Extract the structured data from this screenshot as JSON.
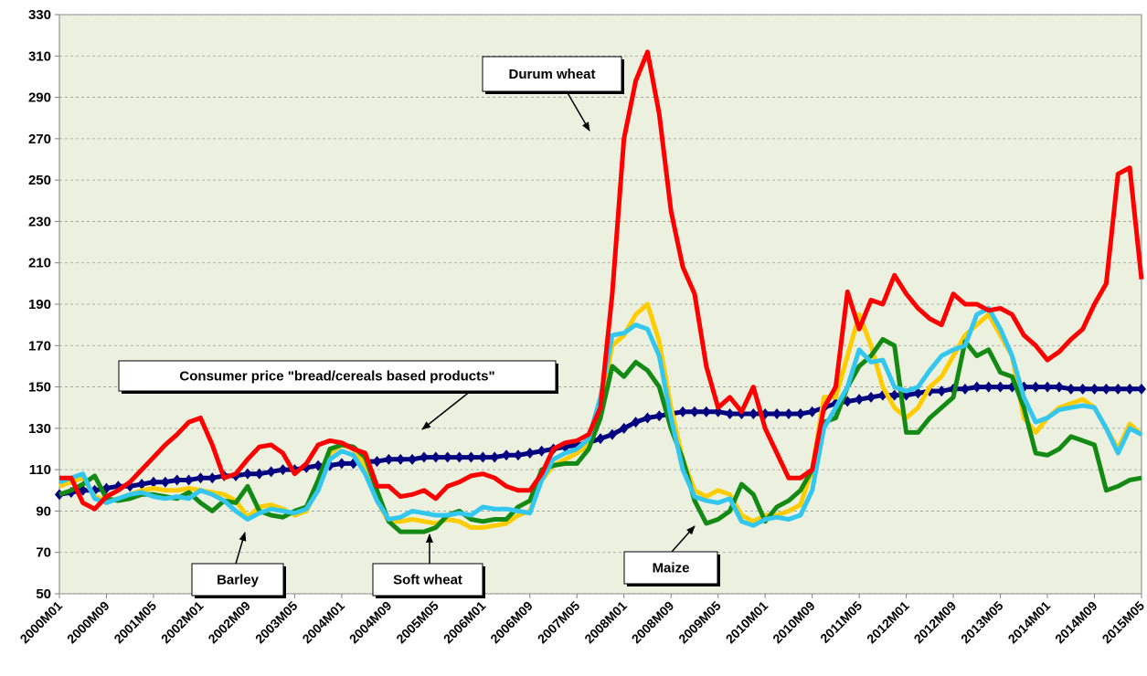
{
  "chart_data": {
    "type": "line",
    "categories": [
      "2000M01",
      null,
      null,
      null,
      "2000M09",
      null,
      null,
      null,
      "2001M05",
      null,
      null,
      null,
      "2002M01",
      null,
      null,
      null,
      "2002M09",
      null,
      null,
      null,
      "2003M05",
      null,
      null,
      null,
      "2004M01",
      null,
      null,
      null,
      "2004M09",
      null,
      null,
      null,
      "2005M05",
      null,
      null,
      null,
      "2006M01",
      null,
      null,
      null,
      "2006M09",
      null,
      null,
      null,
      "2007M05",
      null,
      null,
      null,
      "2008M01",
      null,
      null,
      null,
      "2008M09",
      null,
      null,
      null,
      "2009M05",
      null,
      null,
      null,
      "2010M01",
      null,
      null,
      null,
      "2010M09",
      null,
      null,
      null,
      "2011M05",
      null,
      null,
      null,
      "2012M01",
      null,
      null,
      null,
      "2012M09",
      null,
      null,
      null,
      "2013M05",
      null,
      null,
      null,
      "2014M01",
      null,
      null,
      null,
      "2014M09",
      null,
      null,
      null,
      "2015M05"
    ],
    "series": [
      {
        "name": "Consumer price \"bread/cereals based products\"",
        "color": "#000080",
        "values": [
          98,
          99,
          100,
          100,
          101,
          102,
          102,
          103,
          104,
          104,
          105,
          105,
          106,
          106,
          107,
          107,
          108,
          108,
          109,
          110,
          110,
          111,
          112,
          112,
          113,
          113,
          114,
          114,
          115,
          115,
          115,
          116,
          116,
          116,
          116,
          116,
          116,
          116,
          117,
          117,
          118,
          119,
          120,
          121,
          122,
          123,
          125,
          127,
          130,
          133,
          135,
          136,
          137,
          138,
          138,
          138,
          138,
          137,
          137,
          137,
          137,
          137,
          137,
          137,
          138,
          140,
          142,
          143,
          144,
          145,
          146,
          146,
          146,
          147,
          148,
          148,
          149,
          149,
          150,
          150,
          150,
          150,
          150,
          150,
          150,
          150,
          149,
          149,
          149,
          149,
          149,
          149,
          149
        ]
      },
      {
        "name": "Soft wheat",
        "color": "#ffcc00",
        "values": [
          102,
          104,
          106,
          97,
          95,
          96,
          98,
          100,
          101,
          100,
          100,
          101,
          100,
          99,
          98,
          95,
          87,
          92,
          93,
          91,
          88,
          90,
          102,
          118,
          122,
          120,
          112,
          95,
          85,
          85,
          86,
          85,
          84,
          86,
          85,
          82,
          82,
          83,
          84,
          88,
          90,
          105,
          112,
          115,
          118,
          122,
          140,
          170,
          175,
          185,
          190,
          172,
          140,
          115,
          100,
          97,
          100,
          98,
          88,
          85,
          88,
          88,
          90,
          93,
          110,
          145,
          145,
          165,
          185,
          170,
          150,
          140,
          135,
          140,
          150,
          155,
          165,
          175,
          180,
          185,
          175,
          165,
          135,
          128,
          135,
          140,
          142,
          144,
          140,
          130,
          120,
          132,
          127
        ]
      },
      {
        "name": "Barley",
        "color": "#138a13",
        "values": [
          98,
          100,
          103,
          107,
          96,
          95,
          96,
          98,
          98,
          97,
          96,
          99,
          94,
          90,
          95,
          94,
          102,
          90,
          88,
          87,
          90,
          92,
          105,
          120,
          122,
          121,
          116,
          100,
          85,
          80,
          80,
          80,
          82,
          88,
          90,
          86,
          85,
          86,
          86,
          92,
          95,
          110,
          112,
          113,
          113,
          120,
          135,
          160,
          155,
          162,
          158,
          150,
          130,
          115,
          95,
          84,
          86,
          90,
          103,
          98,
          85,
          92,
          95,
          100,
          110,
          133,
          135,
          150,
          160,
          165,
          173,
          170,
          128,
          128,
          135,
          140,
          145,
          172,
          165,
          168,
          157,
          155,
          140,
          118,
          117,
          120,
          126,
          124,
          122,
          100,
          102,
          105,
          106
        ]
      },
      {
        "name": "Maize",
        "color": "#33c6ee",
        "values": [
          104,
          106,
          108,
          96,
          94,
          96,
          98,
          99,
          97,
          96,
          97,
          96,
          100,
          98,
          95,
          90,
          86,
          89,
          91,
          90,
          89,
          91,
          100,
          115,
          119,
          117,
          108,
          95,
          86,
          87,
          90,
          89,
          88,
          88,
          89,
          88,
          92,
          91,
          91,
          90,
          89,
          105,
          115,
          118,
          120,
          125,
          145,
          175,
          176,
          180,
          178,
          165,
          135,
          110,
          97,
          95,
          94,
          96,
          85,
          83,
          86,
          87,
          86,
          88,
          100,
          130,
          140,
          150,
          168,
          162,
          163,
          150,
          148,
          150,
          158,
          165,
          168,
          170,
          185,
          188,
          178,
          165,
          145,
          133,
          135,
          139,
          140,
          141,
          140,
          130,
          118,
          130,
          127
        ]
      },
      {
        "name": "Durum wheat",
        "color": "#ff0000",
        "values": [
          106,
          106,
          94,
          91,
          97,
          100,
          104,
          110,
          116,
          122,
          127,
          133,
          135,
          122,
          106,
          108,
          115,
          121,
          122,
          118,
          108,
          113,
          122,
          124,
          123,
          120,
          118,
          102,
          102,
          97,
          98,
          100,
          96,
          102,
          104,
          107,
          108,
          106,
          102,
          100,
          100,
          108,
          120,
          123,
          124,
          127,
          140,
          195,
          270,
          298,
          312,
          282,
          235,
          208,
          195,
          160,
          140,
          145,
          138,
          150,
          130,
          118,
          106,
          106,
          110,
          140,
          150,
          196,
          178,
          192,
          190,
          204,
          195,
          188,
          183,
          180,
          195,
          190,
          190,
          187,
          188,
          185,
          175,
          170,
          163,
          167,
          173,
          178,
          190,
          200,
          253,
          256,
          202
        ]
      }
    ],
    "ylim": [
      50,
      330
    ],
    "yticks": [
      50,
      70,
      90,
      110,
      130,
      150,
      170,
      190,
      210,
      230,
      250,
      270,
      290,
      310,
      330
    ],
    "grid": true,
    "background": "#ebf1de"
  }
}
